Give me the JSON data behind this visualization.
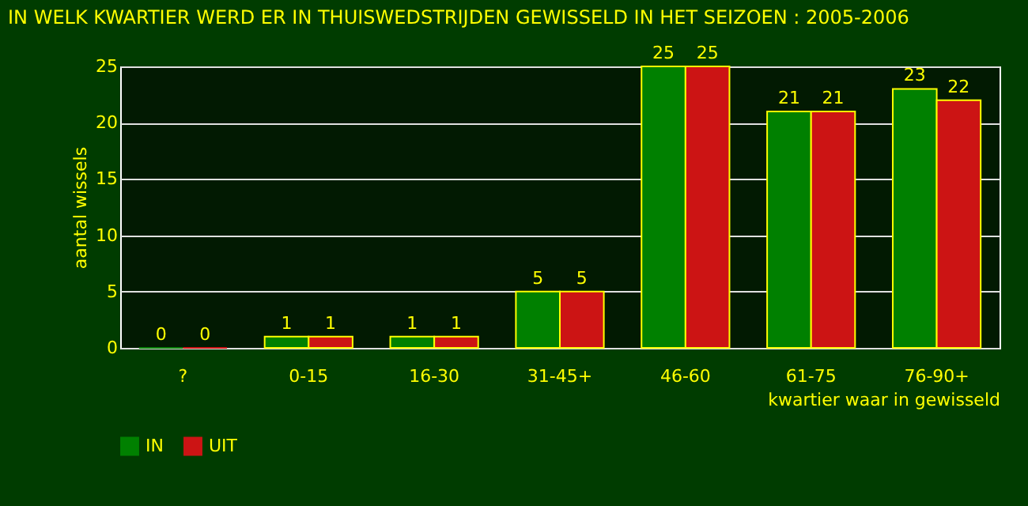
{
  "chart_data": {
    "type": "bar",
    "title": "IN WELK KWARTIER WERD ER IN THUISWEDSTRIJDEN GEWISSELD IN HET SEIZOEN : 2005-2006",
    "xlabel": "kwartier waar in gewisseld",
    "ylabel": "aantal wissels",
    "categories": [
      "?",
      "0-15",
      "16-30",
      "31-45+",
      "46-60",
      "61-75",
      "76-90+"
    ],
    "series": [
      {
        "name": "IN",
        "color": "#008000",
        "values": [
          0,
          1,
          1,
          5,
          25,
          21,
          23
        ]
      },
      {
        "name": "UIT",
        "color": "#cc1414",
        "values": [
          0,
          1,
          1,
          5,
          25,
          21,
          22
        ]
      }
    ],
    "ylim": [
      0,
      25
    ],
    "yticks": [
      0,
      5,
      10,
      15,
      20,
      25
    ],
    "grid": "y",
    "legend": "bottom",
    "data_labels": true
  }
}
